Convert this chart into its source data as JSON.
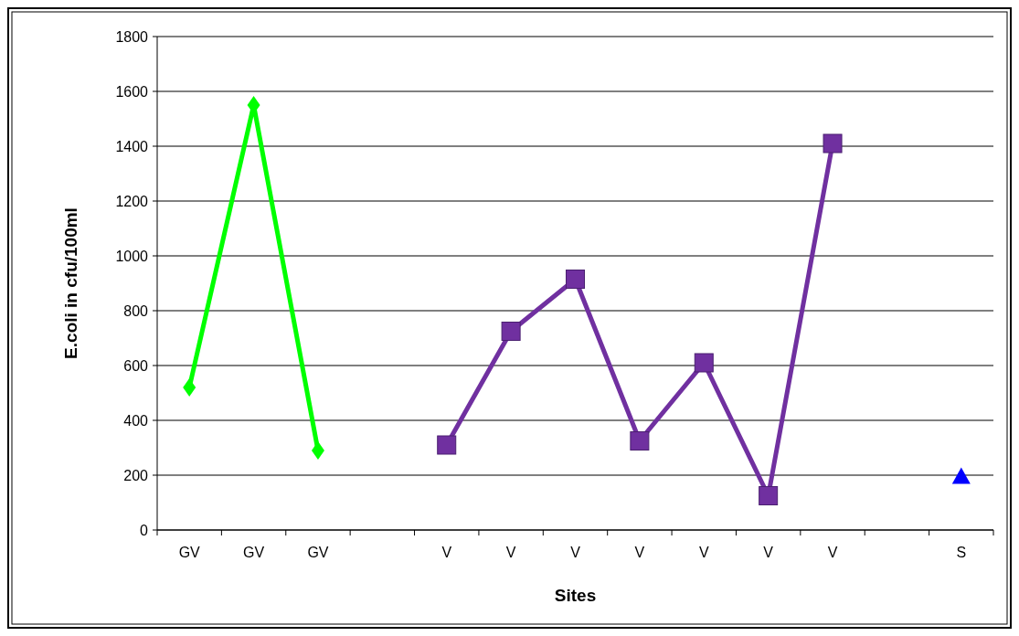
{
  "chart_data": {
    "type": "line",
    "xlabel": "Sites",
    "ylabel": "E.coli in cfu/100ml",
    "categories": [
      "GV",
      "GV",
      "GV",
      null,
      "V",
      "V",
      "V",
      "V",
      "V",
      "V",
      "V",
      null,
      "S"
    ],
    "ylim": [
      0,
      1800
    ],
    "yticks": [
      0,
      200,
      400,
      600,
      800,
      1000,
      1200,
      1400,
      1600,
      1800
    ],
    "grid": "y",
    "series": [
      {
        "color": "#00ff00",
        "marker": "diamond",
        "values": [
          520,
          1550,
          290,
          null,
          null,
          null,
          null,
          null,
          null,
          null,
          null,
          null,
          null
        ]
      },
      {
        "color": "#7030a0",
        "marker": "square",
        "values": [
          null,
          null,
          null,
          null,
          310,
          725,
          915,
          325,
          610,
          125,
          1410,
          null,
          null
        ]
      },
      {
        "type": "scatter",
        "color": "#0000ff",
        "marker": "triangle",
        "values": [
          null,
          null,
          null,
          null,
          null,
          null,
          null,
          null,
          null,
          null,
          null,
          null,
          195
        ]
      }
    ]
  }
}
